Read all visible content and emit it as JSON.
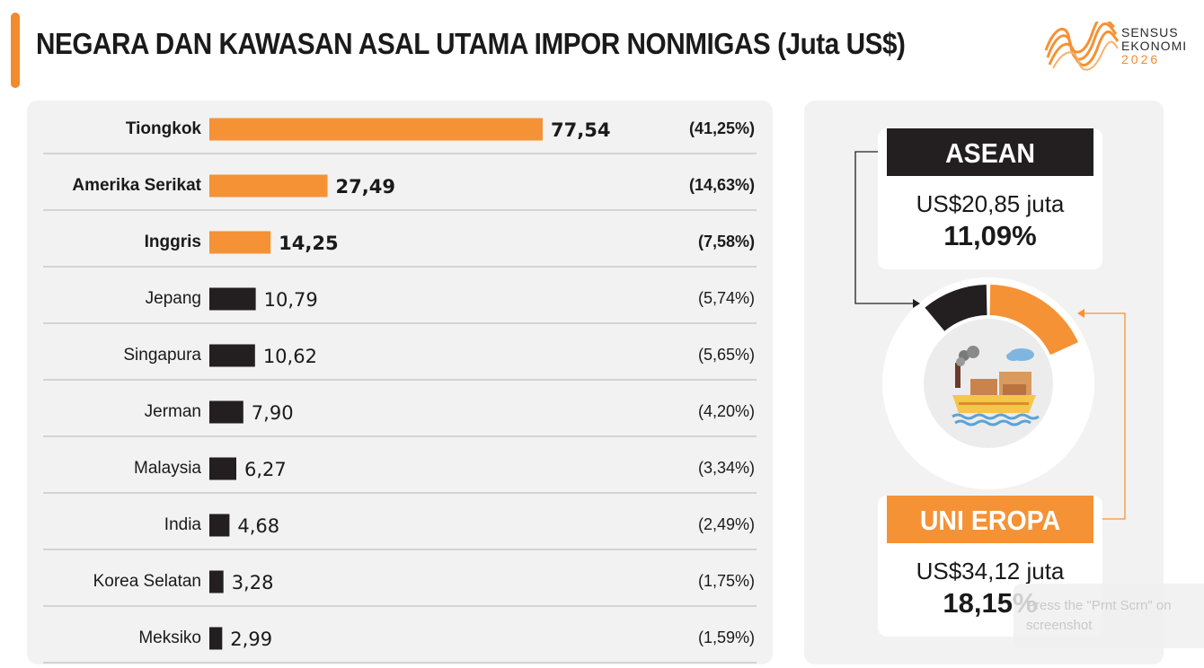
{
  "title": "NEGARA DAN KAWASAN ASAL UTAMA IMPOR NONMIGAS (Juta US$)",
  "logo": {
    "line1": "SENSUS",
    "line2": "EKONOMI",
    "line3": "2026"
  },
  "colors": {
    "accent": "#f59235",
    "dark": "#231f20",
    "panel": "#f2f2f2"
  },
  "chart_data": {
    "type": "bar",
    "orientation": "horizontal",
    "title": "NEGARA DAN KAWASAN ASAL UTAMA IMPOR NONMIGAS (Juta US$)",
    "categories": [
      "Tiongkok",
      "Amerika Serikat",
      "Inggris",
      "Jepang",
      "Singapura",
      "Jerman",
      "Malaysia",
      "India",
      "Korea Selatan",
      "Meksiko"
    ],
    "values": [
      77.54,
      27.49,
      14.25,
      10.79,
      10.62,
      7.9,
      6.27,
      4.68,
      3.28,
      2.99
    ],
    "value_labels": [
      "77,54",
      "27,49",
      "14,25",
      "10,79",
      "10,62",
      "7,90",
      "6,27",
      "4,68",
      "3,28",
      "2,99"
    ],
    "shares": [
      "(41,25%)",
      "(14,63%)",
      "(7,58%)",
      "(5,74%)",
      "(5,65%)",
      "(4,20%)",
      "(3,34%)",
      "(2,49%)",
      "(1,75%)",
      "(1,59%)"
    ],
    "highlighted_top": 3,
    "highlight_color": "#f59235",
    "default_color": "#231f20",
    "xlabel": "",
    "ylabel": "",
    "xlim": [
      0,
      77.54
    ],
    "grid": false,
    "legend": "none"
  },
  "regions": [
    {
      "name": "ASEAN",
      "amount": "US$20,85 juta",
      "percent": "11,09%",
      "share": 11.09,
      "color": "#231f20"
    },
    {
      "name": "UNI EROPA",
      "amount": "US$34,12 juta",
      "percent": "18,15%",
      "share": 18.15,
      "color": "#f59235"
    }
  ],
  "toast": {
    "line1": "Press the \"Prnt Scrn\" on",
    "line2": "screenshot"
  }
}
